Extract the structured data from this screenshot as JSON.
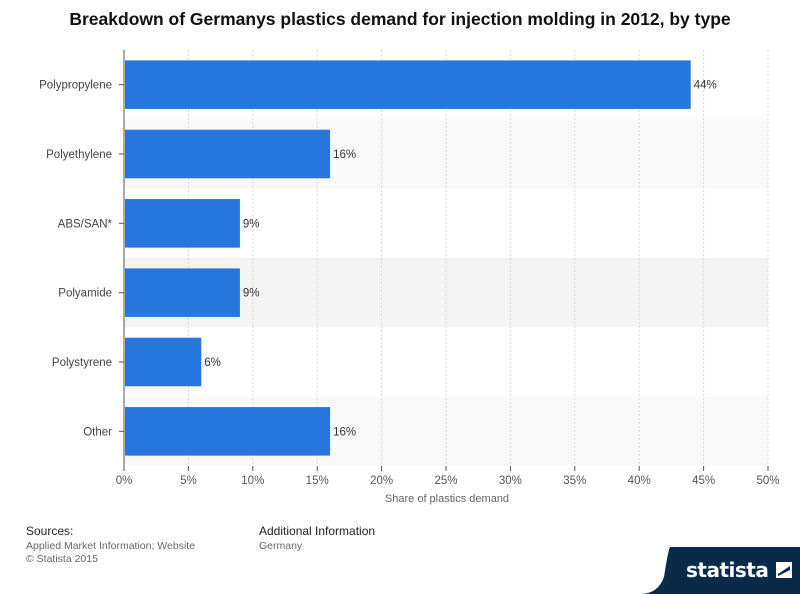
{
  "chart_data": {
    "type": "bar",
    "orientation": "horizontal",
    "title": "Breakdown of Germanys plastics demand for injection molding in 2012, by type",
    "categories": [
      "Polypropylene",
      "Polyethylene",
      "ABS/SAN*",
      "Polyamide",
      "Polystyrene",
      "Other"
    ],
    "values": [
      44,
      16,
      9,
      9,
      6,
      16
    ],
    "value_labels": [
      "44%",
      "16%",
      "9%",
      "9%",
      "6%",
      "16%"
    ],
    "xlabel": "Share of plastics demand",
    "ylabel": "",
    "xlim": [
      0,
      50
    ],
    "xticks": [
      0,
      5,
      10,
      15,
      20,
      25,
      30,
      35,
      40,
      45,
      50
    ],
    "xtick_labels": [
      "0%",
      "5%",
      "10%",
      "15%",
      "20%",
      "25%",
      "30%",
      "35%",
      "40%",
      "45%",
      "50%"
    ],
    "grid": true,
    "bar_color": "#2776dd"
  },
  "footer": {
    "sources_heading": "Sources:",
    "sources_line1": "Applied Market Information; Website",
    "sources_line2": "© Statista 2015",
    "additional_heading": "Additional Information",
    "additional_line1": "Germany"
  },
  "logo": {
    "text": "statista",
    "icon": "statista-logo-icon",
    "color": "#0a2a4a"
  }
}
